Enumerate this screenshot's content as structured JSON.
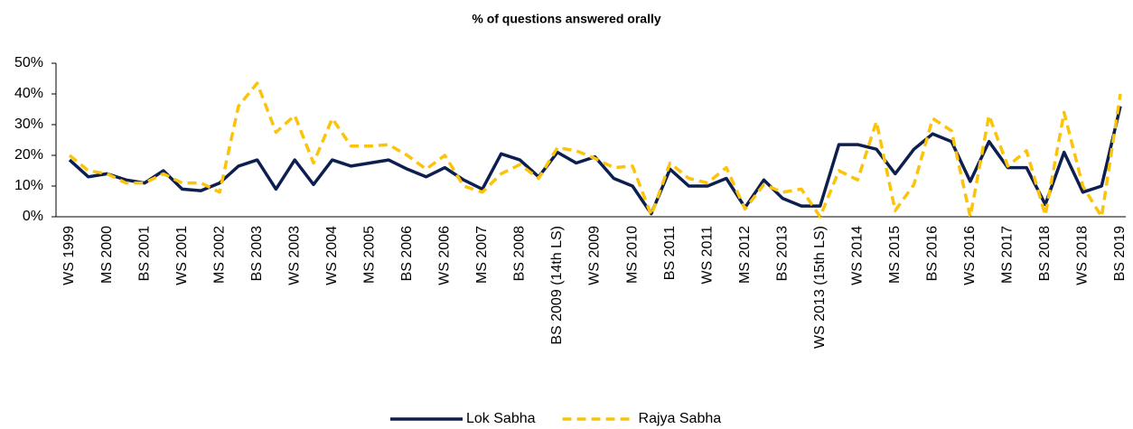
{
  "chart_data": {
    "type": "line",
    "title": "% of questions answered orally",
    "categories": [
      "WS 1999",
      null,
      "MS 2000",
      null,
      "BS 2001",
      null,
      "WS 2001",
      null,
      "MS 2002",
      null,
      "BS 2003",
      null,
      "WS 2003",
      null,
      "WS 2004",
      null,
      "MS 2005",
      null,
      "BS 2006",
      null,
      "WS 2006",
      null,
      "MS 2007",
      null,
      "BS 2008",
      null,
      "BS 2009 (14th LS)",
      null,
      "WS 2009",
      null,
      "MS 2010",
      null,
      "BS 2011",
      null,
      "WS 2011",
      null,
      "MS 2012",
      null,
      "BS 2013",
      null,
      "WS 2013 (15th LS)",
      null,
      "WS 2014",
      null,
      "MS 2015",
      null,
      "BS 2016",
      null,
      "WS 2016",
      null,
      "MS 2017",
      null,
      "BS 2018",
      null,
      "WS 2018",
      null,
      "BS 2019"
    ],
    "series": [
      {
        "name": "Lok Sabha",
        "color": "#0d1f4f",
        "style": "solid",
        "values": [
          18.5,
          13,
          14,
          12,
          11,
          15,
          9,
          8.5,
          11,
          16.5,
          18.5,
          9,
          18.5,
          10.5,
          18.5,
          16.5,
          17.5,
          18.5,
          15.5,
          13,
          16,
          12,
          9,
          20.5,
          18.5,
          13,
          21,
          17.5,
          19.5,
          12.5,
          10,
          1,
          15.5,
          10,
          10,
          12.5,
          3,
          12,
          6,
          3.5,
          3.5,
          23.5,
          23.5,
          22,
          14,
          22,
          27,
          24.5,
          11.5,
          24.5,
          16,
          16,
          4,
          21,
          8,
          10,
          36
        ]
      },
      {
        "name": "Rajya Sabha",
        "color": "#fcc30b",
        "style": "dashed",
        "values": [
          20,
          15,
          14,
          11,
          11,
          14,
          11,
          11,
          8,
          36,
          43.5,
          27.5,
          33,
          17.5,
          32,
          23,
          23,
          23.5,
          20,
          15.5,
          20,
          10,
          8,
          14,
          17,
          12.5,
          22.5,
          21.5,
          19,
          16,
          16.5,
          0.5,
          17.5,
          12.5,
          11,
          16,
          2.5,
          10.5,
          8,
          9,
          0,
          15,
          12,
          31,
          2,
          10.5,
          32,
          28,
          0,
          33,
          16.5,
          21.5,
          0.5,
          34,
          10,
          0,
          40
        ]
      }
    ],
    "ylim": [
      0,
      50
    ],
    "yticks": [
      {
        "value": 0,
        "label": "0%"
      },
      {
        "value": 10,
        "label": "10%"
      },
      {
        "value": 20,
        "label": "20%"
      },
      {
        "value": 30,
        "label": "30%"
      },
      {
        "value": 40,
        "label": "40%"
      },
      {
        "value": 50,
        "label": "50%"
      }
    ],
    "grid": false,
    "legend": "bottom"
  }
}
